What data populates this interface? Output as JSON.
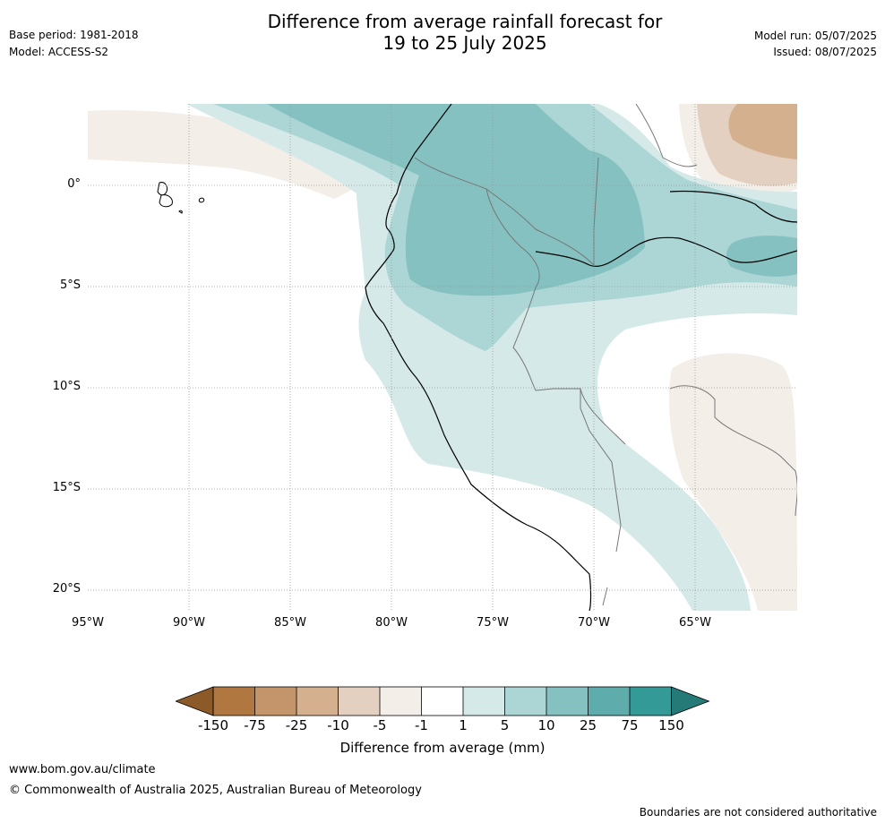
{
  "header": {
    "title_line1": "Difference from average rainfall forecast for",
    "title_line2": "19 to 25 July 2025",
    "base_period": "Base period: 1981-2018",
    "model": "Model: ACCESS-S2",
    "model_run": "Model run: 05/07/2025",
    "issued": "Issued: 08/07/2025"
  },
  "map": {
    "lat_labels": [
      "0°",
      "5°S",
      "10°S",
      "15°S",
      "20°S"
    ],
    "lon_labels": [
      "95°W",
      "90°W",
      "85°W",
      "80°W",
      "75°W",
      "70°W",
      "65°W"
    ]
  },
  "colorbar": {
    "title": "Difference from average (mm)",
    "ticks": [
      "-150",
      "-75",
      "-25",
      "-10",
      "-5",
      "-1",
      "1",
      "5",
      "10",
      "25",
      "75",
      "150"
    ],
    "colors": [
      "#8c5a28",
      "#b07840",
      "#c4956a",
      "#d4b08e",
      "#e4d0c0",
      "#f3eee8",
      "#ffffff",
      "#d5e9e8",
      "#acd6d5",
      "#84c1c0",
      "#5eacab",
      "#349a98",
      "#257a78"
    ]
  },
  "footer": {
    "url": "www.bom.gov.au/climate",
    "copyright": "© Commonwealth of Australia 2025, Australian Bureau of Meteorology",
    "disclaimer": "Boundaries are not considered authoritative"
  }
}
